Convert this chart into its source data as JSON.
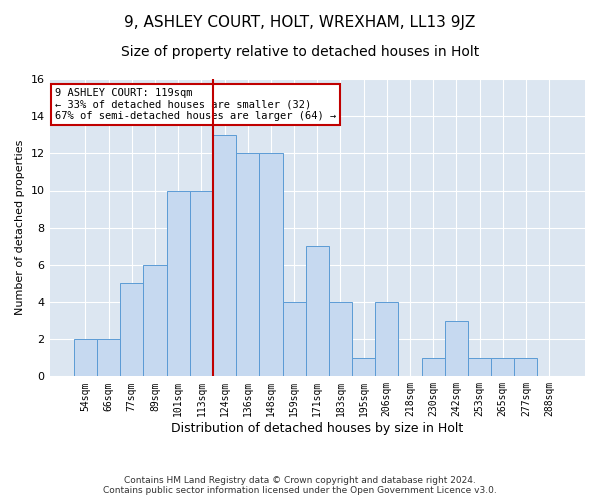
{
  "title": "9, ASHLEY COURT, HOLT, WREXHAM, LL13 9JZ",
  "subtitle": "Size of property relative to detached houses in Holt",
  "xlabel": "Distribution of detached houses by size in Holt",
  "ylabel": "Number of detached properties",
  "categories": [
    "54sqm",
    "66sqm",
    "77sqm",
    "89sqm",
    "101sqm",
    "113sqm",
    "124sqm",
    "136sqm",
    "148sqm",
    "159sqm",
    "171sqm",
    "183sqm",
    "195sqm",
    "206sqm",
    "218sqm",
    "230sqm",
    "242sqm",
    "253sqm",
    "265sqm",
    "277sqm",
    "288sqm"
  ],
  "values": [
    2,
    2,
    5,
    6,
    10,
    10,
    13,
    12,
    12,
    4,
    7,
    4,
    1,
    4,
    0,
    1,
    3,
    1,
    1,
    1,
    0
  ],
  "bar_color": "#c6d9f0",
  "bar_edge_color": "#5b9bd5",
  "ref_line_x": 6.0,
  "ref_line_color": "#c00000",
  "annotation_text": "9 ASHLEY COURT: 119sqm\n← 33% of detached houses are smaller (32)\n67% of semi-detached houses are larger (64) →",
  "annotation_box_color": "#ffffff",
  "annotation_box_edge": "#c00000",
  "ylim": [
    0,
    16
  ],
  "yticks": [
    0,
    2,
    4,
    6,
    8,
    10,
    12,
    14,
    16
  ],
  "plot_bg_color": "#dce6f1",
  "grid_color": "#ffffff",
  "footer": "Contains HM Land Registry data © Crown copyright and database right 2024.\nContains public sector information licensed under the Open Government Licence v3.0.",
  "title_fontsize": 11,
  "subtitle_fontsize": 10,
  "xlabel_fontsize": 9,
  "ylabel_fontsize": 8,
  "annot_fontsize": 7.5,
  "tick_fontsize": 7
}
